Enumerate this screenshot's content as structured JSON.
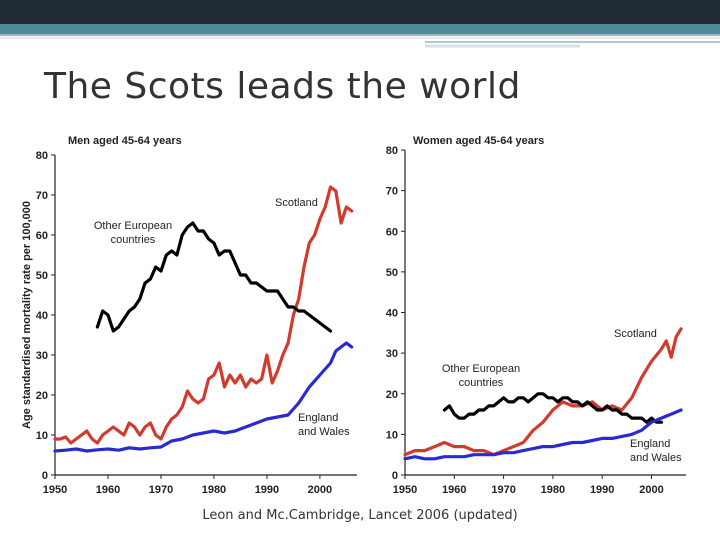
{
  "slide": {
    "title": "The Scots leads the world",
    "caption": "Leon and Mc.Cambridge, Lancet 2006 (updated)"
  },
  "colors": {
    "scotland": "#d23a2e",
    "england_wales": "#2a2ad2",
    "other_europe": "#000000",
    "band_dark": "#1f2a35",
    "band_teal": "#4f8a98"
  },
  "chart_data": [
    {
      "type": "line",
      "title": "Men aged 45-64 years",
      "ylabel": "Age standardised mortality rate per 100,000",
      "xlabel": "",
      "xlim": [
        1950,
        2007
      ],
      "ylim": [
        0,
        80
      ],
      "x_ticks": [
        "1950",
        "1960",
        "1970",
        "1980",
        "1990",
        "2000"
      ],
      "y_ticks": [
        "0",
        "10",
        "20",
        "30",
        "40",
        "50",
        "60",
        "70",
        "80"
      ],
      "series": [
        {
          "name": "Scotland",
          "label": "Scotland",
          "color_key": "scotland",
          "x": [
            1950,
            1951,
            1952,
            1953,
            1954,
            1955,
            1956,
            1957,
            1958,
            1959,
            1960,
            1961,
            1962,
            1963,
            1964,
            1965,
            1966,
            1967,
            1968,
            1969,
            1970,
            1971,
            1972,
            1973,
            1974,
            1975,
            1976,
            1977,
            1978,
            1979,
            1980,
            1981,
            1982,
            1983,
            1984,
            1985,
            1986,
            1987,
            1988,
            1989,
            1990,
            1991,
            1992,
            1993,
            1994,
            1995,
            1996,
            1997,
            1998,
            1999,
            2000,
            2001,
            2002,
            2003,
            2004,
            2005,
            2006
          ],
          "values": [
            9,
            9,
            9.5,
            8,
            9,
            10,
            11,
            9,
            8,
            10,
            11,
            12,
            11,
            10,
            13,
            12,
            10,
            12,
            13,
            10,
            9,
            12,
            14,
            15,
            17,
            21,
            19,
            18,
            19,
            24,
            25,
            28,
            22,
            25,
            23,
            25,
            22,
            24,
            23,
            24,
            30,
            23,
            26,
            30,
            33,
            40,
            44,
            52,
            58,
            60,
            64,
            67,
            72,
            71,
            63,
            67,
            66
          ]
        },
        {
          "name": "Other European countries",
          "label": "Other European countries",
          "color_key": "other_europe",
          "x": [
            1958,
            1959,
            1960,
            1961,
            1962,
            1963,
            1964,
            1965,
            1966,
            1967,
            1968,
            1969,
            1970,
            1971,
            1972,
            1973,
            1974,
            1975,
            1976,
            1977,
            1978,
            1979,
            1980,
            1981,
            1982,
            1983,
            1984,
            1985,
            1986,
            1987,
            1988,
            1989,
            1990,
            1991,
            1992,
            1993,
            1994,
            1995,
            1996,
            1997,
            1998,
            1999,
            2000,
            2001,
            2002
          ],
          "values": [
            37,
            41,
            40,
            36,
            37,
            39,
            41,
            42,
            44,
            48,
            49,
            52,
            51,
            55,
            56,
            55,
            60,
            62,
            63,
            61,
            61,
            59,
            58,
            55,
            56,
            56,
            53,
            50,
            50,
            48,
            48,
            47,
            46,
            46,
            46,
            44,
            42,
            42,
            41,
            41,
            40,
            39,
            38,
            37,
            36
          ]
        },
        {
          "name": "England and Wales",
          "label": "England and Wales",
          "color_key": "england_wales",
          "x": [
            1950,
            1952,
            1954,
            1956,
            1958,
            1960,
            1962,
            1964,
            1966,
            1968,
            1970,
            1972,
            1974,
            1976,
            1978,
            1980,
            1982,
            1984,
            1986,
            1988,
            1990,
            1992,
            1994,
            1996,
            1998,
            2000,
            2002,
            2003,
            2004,
            2005,
            2006
          ],
          "values": [
            6,
            6.2,
            6.5,
            6,
            6.3,
            6.5,
            6.2,
            6.8,
            6.5,
            6.8,
            7,
            8.5,
            9,
            10,
            10.5,
            11,
            10.5,
            11,
            12,
            13,
            14,
            14.5,
            15,
            18,
            22,
            25,
            28,
            31,
            32,
            33,
            32
          ]
        }
      ]
    },
    {
      "type": "line",
      "title": "Women aged 45-64 years",
      "ylabel": "",
      "xlabel": "",
      "xlim": [
        1950,
        2007
      ],
      "ylim": [
        0,
        80
      ],
      "x_ticks": [
        "1950",
        "1960",
        "1970",
        "1980",
        "1990",
        "2000"
      ],
      "y_ticks": [
        "0",
        "10",
        "20",
        "30",
        "40",
        "50",
        "60",
        "70",
        "80"
      ],
      "series": [
        {
          "name": "Scotland",
          "label": "Scotland",
          "color_key": "scotland",
          "x": [
            1950,
            1952,
            1954,
            1956,
            1958,
            1960,
            1962,
            1964,
            1966,
            1968,
            1970,
            1972,
            1974,
            1976,
            1978,
            1980,
            1982,
            1984,
            1986,
            1988,
            1990,
            1992,
            1994,
            1996,
            1998,
            2000,
            2002,
            2003,
            2004,
            2005,
            2006
          ],
          "values": [
            5,
            6,
            6,
            7,
            8,
            7,
            7,
            6,
            6,
            5,
            6,
            7,
            8,
            11,
            13,
            16,
            18,
            17,
            17,
            18,
            16,
            17,
            16,
            19,
            24,
            28,
            31,
            33,
            29,
            34,
            36
          ]
        },
        {
          "name": "Other European countries",
          "label": "Other European countries",
          "color_key": "other_europe",
          "x": [
            1958,
            1959,
            1960,
            1961,
            1962,
            1963,
            1964,
            1965,
            1966,
            1967,
            1968,
            1969,
            1970,
            1971,
            1972,
            1973,
            1974,
            1975,
            1976,
            1977,
            1978,
            1979,
            1980,
            1981,
            1982,
            1983,
            1984,
            1985,
            1986,
            1987,
            1988,
            1989,
            1990,
            1991,
            1992,
            1993,
            1994,
            1995,
            1996,
            1997,
            1998,
            1999,
            2000,
            2001,
            2002
          ],
          "values": [
            16,
            17,
            15,
            14,
            14,
            15,
            15,
            16,
            16,
            17,
            17,
            18,
            19,
            18,
            18,
            19,
            19,
            18,
            19,
            20,
            20,
            19,
            19,
            18,
            19,
            19,
            18,
            18,
            17,
            18,
            17,
            16,
            16,
            17,
            16,
            16,
            15,
            15,
            14,
            14,
            14,
            13,
            14,
            13,
            13
          ]
        },
        {
          "name": "England and Wales",
          "label": "England and Wales",
          "color_key": "england_wales",
          "x": [
            1950,
            1952,
            1954,
            1956,
            1958,
            1960,
            1962,
            1964,
            1966,
            1968,
            1970,
            1972,
            1974,
            1976,
            1978,
            1980,
            1982,
            1984,
            1986,
            1988,
            1990,
            1992,
            1994,
            1996,
            1998,
            2000,
            2002,
            2004,
            2006
          ],
          "values": [
            4,
            4.5,
            4,
            4,
            4.5,
            4.5,
            4.5,
            5,
            5,
            5,
            5.5,
            5.5,
            6,
            6.5,
            7,
            7,
            7.5,
            8,
            8,
            8.5,
            9,
            9,
            9.5,
            10,
            11,
            13,
            14,
            15,
            16
          ]
        }
      ]
    }
  ]
}
